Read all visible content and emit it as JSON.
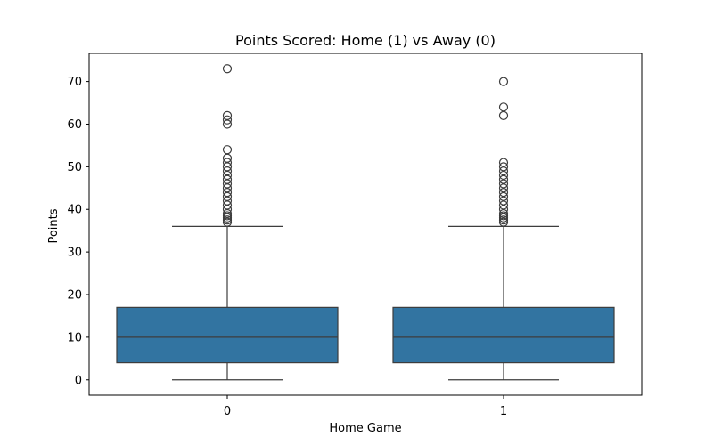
{
  "chart_data": {
    "type": "boxplot",
    "title": "Points Scored: Home (1) vs Away (0)",
    "xlabel": "Home Game",
    "ylabel": "Points",
    "ylim": [
      -3.6,
      76.6
    ],
    "yticks": [
      0,
      10,
      20,
      30,
      40,
      50,
      60,
      70
    ],
    "box_color": "#3274a1",
    "line_color": "#3d3d3d",
    "categories": [
      "0",
      "1"
    ],
    "series": [
      {
        "name": "0",
        "whisker_low": 0,
        "q1": 4,
        "median": 10,
        "q3": 17,
        "whisker_high": 36,
        "outliers": [
          37,
          37.5,
          38,
          38.5,
          39,
          40,
          41,
          42,
          43,
          44,
          45,
          46,
          47,
          48,
          49,
          50,
          51,
          52,
          54,
          60,
          61,
          62,
          73
        ]
      },
      {
        "name": "1",
        "whisker_low": 0,
        "q1": 4,
        "median": 10,
        "q3": 17,
        "whisker_high": 36,
        "outliers": [
          37,
          37.5,
          38,
          38.5,
          39,
          40,
          41,
          42,
          43,
          44,
          45,
          46,
          47,
          48,
          49,
          50,
          51,
          62,
          64,
          70
        ]
      }
    ]
  }
}
